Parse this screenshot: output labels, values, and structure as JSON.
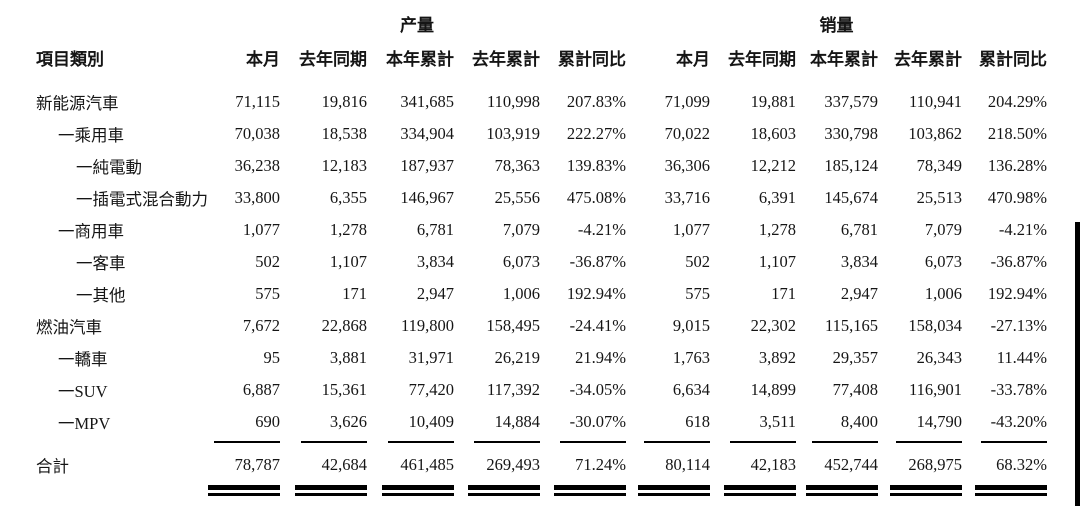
{
  "table": {
    "group_headers": {
      "production": "产量",
      "sales": "销量"
    },
    "category_header": "項目類別",
    "sub_headers": [
      "本月",
      "去年同期",
      "本年累計",
      "去年累計",
      "累計同比",
      "本月",
      "去年同期",
      "本年累計",
      "去年累計",
      "累計同比"
    ],
    "rows": [
      {
        "label": "新能源汽車",
        "indent": 0,
        "values": [
          "71,115",
          "19,816",
          "341,685",
          "110,998",
          "207.83%",
          "71,099",
          "19,881",
          "337,579",
          "110,941",
          "204.29%"
        ]
      },
      {
        "label": "一乘用車",
        "indent": 1,
        "values": [
          "70,038",
          "18,538",
          "334,904",
          "103,919",
          "222.27%",
          "70,022",
          "18,603",
          "330,798",
          "103,862",
          "218.50%"
        ]
      },
      {
        "label": "一純電動",
        "indent": 2,
        "values": [
          "36,238",
          "12,183",
          "187,937",
          "78,363",
          "139.83%",
          "36,306",
          "12,212",
          "185,124",
          "78,349",
          "136.28%"
        ]
      },
      {
        "label": "一插電式混合動力",
        "indent": 2,
        "values": [
          "33,800",
          "6,355",
          "146,967",
          "25,556",
          "475.08%",
          "33,716",
          "6,391",
          "145,674",
          "25,513",
          "470.98%"
        ]
      },
      {
        "label": "一商用車",
        "indent": 1,
        "values": [
          "1,077",
          "1,278",
          "6,781",
          "7,079",
          "-4.21%",
          "1,077",
          "1,278",
          "6,781",
          "7,079",
          "-4.21%"
        ]
      },
      {
        "label": "一客車",
        "indent": 2,
        "values": [
          "502",
          "1,107",
          "3,834",
          "6,073",
          "-36.87%",
          "502",
          "1,107",
          "3,834",
          "6,073",
          "-36.87%"
        ]
      },
      {
        "label": "一其他",
        "indent": 2,
        "values": [
          "575",
          "171",
          "2,947",
          "1,006",
          "192.94%",
          "575",
          "171",
          "2,947",
          "1,006",
          "192.94%"
        ]
      },
      {
        "label": "燃油汽車",
        "indent": 0,
        "values": [
          "7,672",
          "22,868",
          "119,800",
          "158,495",
          "-24.41%",
          "9,015",
          "22,302",
          "115,165",
          "158,034",
          "-27.13%"
        ]
      },
      {
        "label": "一轎車",
        "indent": 1,
        "values": [
          "95",
          "3,881",
          "31,971",
          "26,219",
          "21.94%",
          "1,763",
          "3,892",
          "29,357",
          "26,343",
          "11.44%"
        ]
      },
      {
        "label": "一SUV",
        "indent": 1,
        "values": [
          "6,887",
          "15,361",
          "77,420",
          "117,392",
          "-34.05%",
          "6,634",
          "14,899",
          "77,408",
          "116,901",
          "-33.78%"
        ]
      },
      {
        "label": "一MPV",
        "indent": 1,
        "values": [
          "690",
          "3,626",
          "10,409",
          "14,884",
          "-30.07%",
          "618",
          "3,511",
          "8,400",
          "14,790",
          "-43.20%"
        ]
      }
    ],
    "total_row": {
      "label": "合計",
      "values": [
        "78,787",
        "42,684",
        "461,485",
        "269,493",
        "71.24%",
        "80,114",
        "42,183",
        "452,744",
        "268,975",
        "68.32%"
      ]
    }
  },
  "colors": {
    "text": "#151515",
    "rule": "#000000",
    "background": "#ffffff"
  }
}
